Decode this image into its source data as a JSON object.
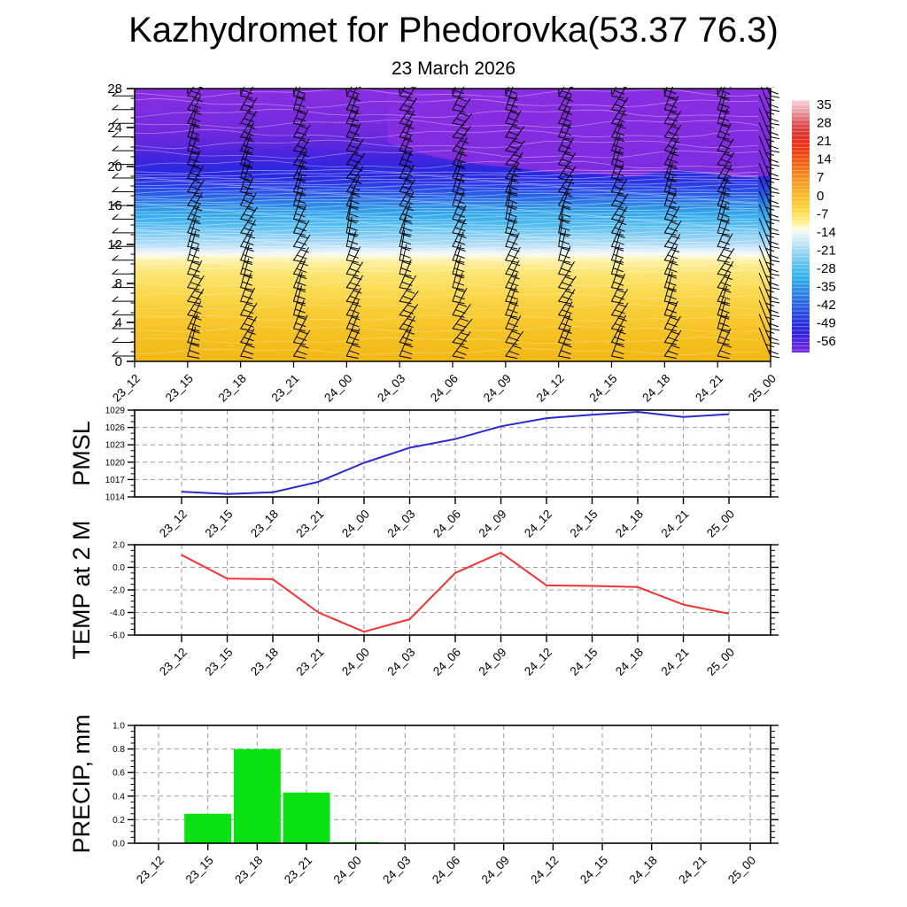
{
  "title": "Kazhydromet for Phedorovka(53.37 76.3)",
  "subtitle": "23 March 2026",
  "time_labels": [
    "23_12",
    "23_15",
    "23_18",
    "23_21",
    "24_00",
    "24_03",
    "24_06",
    "24_09",
    "24_12",
    "24_15",
    "24_18",
    "24_21",
    "25_00"
  ],
  "colorbar": {
    "tick_labels": [
      "35",
      "28",
      "21",
      "14",
      "7",
      "0",
      "-7",
      "-14",
      "-21",
      "-28",
      "-35",
      "-42",
      "-49",
      "-56"
    ],
    "gradient": [
      {
        "v": 37,
        "c": "#f6ced6"
      },
      {
        "v": 33,
        "c": "#ea9aa1"
      },
      {
        "v": 29,
        "c": "#dd5a5e"
      },
      {
        "v": 26,
        "c": "#d63c3c"
      },
      {
        "v": 22,
        "c": "#e82d20"
      },
      {
        "v": 18,
        "c": "#f03b12"
      },
      {
        "v": 14,
        "c": "#f25c14"
      },
      {
        "v": 10,
        "c": "#f57d1a"
      },
      {
        "v": 7,
        "c": "#f79620"
      },
      {
        "v": 3,
        "c": "#f9ab24"
      },
      {
        "v": 0,
        "c": "#fbbd28"
      },
      {
        "v": -4,
        "c": "#fcd23a"
      },
      {
        "v": -7,
        "c": "#fde35f"
      },
      {
        "v": -10,
        "c": "#fdf09a"
      },
      {
        "v": -12,
        "c": "#fefce0"
      },
      {
        "v": -14,
        "c": "#eaf5fb"
      },
      {
        "v": -17,
        "c": "#c9e7f8"
      },
      {
        "v": -21,
        "c": "#99d4f4"
      },
      {
        "v": -25,
        "c": "#64c3f1"
      },
      {
        "v": -28,
        "c": "#46baef"
      },
      {
        "v": -32,
        "c": "#30a8ea"
      },
      {
        "v": -35,
        "c": "#2b92e6"
      },
      {
        "v": -39,
        "c": "#2b74e3"
      },
      {
        "v": -42,
        "c": "#2b5de2"
      },
      {
        "v": -46,
        "c": "#2b3fe0"
      },
      {
        "v": -49,
        "c": "#2a2dde"
      },
      {
        "v": -52,
        "c": "#3622dd"
      },
      {
        "v": -56,
        "c": "#5625dc"
      },
      {
        "v": -58,
        "c": "#6b28dd"
      },
      {
        "v": -60,
        "c": "#7c2cdf"
      }
    ]
  },
  "chart_data": [
    {
      "type": "heatmap",
      "name": "wind-temperature-height-cross-section",
      "categories": [
        "23_12",
        "23_15",
        "23_18",
        "23_21",
        "24_00",
        "24_03",
        "24_06",
        "24_09",
        "24_12",
        "24_15",
        "24_18",
        "24_21",
        "25_00"
      ],
      "ylim": [
        0,
        28
      ],
      "yticks": [
        "0",
        "4",
        "8",
        "12",
        "16",
        "20",
        "24",
        "28"
      ],
      "colorbar_labels": [
        35,
        28,
        21,
        14,
        7,
        0,
        -7,
        -14,
        -21,
        -28,
        -35,
        -42,
        -49,
        -56
      ],
      "overlay": "wind-barbs",
      "gradient_by_height": [
        {
          "h": 28,
          "c": "#8a2ee2"
        },
        {
          "h": 26,
          "c": "#7f2ce0"
        },
        {
          "h": 24,
          "c": "#752ade"
        },
        {
          "h": 22.5,
          "c": "#6227dd"
        },
        {
          "h": 21,
          "c": "#4524de"
        },
        {
          "h": 19.8,
          "c": "#2f27e0"
        },
        {
          "h": 19,
          "c": "#2828e2"
        },
        {
          "h": 18.2,
          "c": "#2c3be6"
        },
        {
          "h": 17.4,
          "c": "#2853e8"
        },
        {
          "h": 16.6,
          "c": "#2a72e6"
        },
        {
          "h": 15.8,
          "c": "#2f93e6"
        },
        {
          "h": 15,
          "c": "#36abec"
        },
        {
          "h": 14,
          "c": "#52bcf0"
        },
        {
          "h": 13,
          "c": "#84cdf3"
        },
        {
          "h": 12,
          "c": "#b4ddf6"
        },
        {
          "h": 11.4,
          "c": "#dceefa"
        },
        {
          "h": 11.05,
          "c": "#f2f7f6"
        },
        {
          "h": 10.8,
          "c": "#fdf9d8"
        },
        {
          "h": 10.3,
          "c": "#fdf0a4"
        },
        {
          "h": 9.5,
          "c": "#fce87e"
        },
        {
          "h": 8,
          "c": "#fbdf5f"
        },
        {
          "h": 6,
          "c": "#f9d23f"
        },
        {
          "h": 4,
          "c": "#f7c72c"
        },
        {
          "h": 2,
          "c": "#f4bf1d"
        },
        {
          "h": 0,
          "c": "#f2b714"
        }
      ],
      "purple_boundary": [
        [
          285,
          22.5
        ],
        [
          340,
          21.2
        ],
        [
          400,
          19.9
        ],
        [
          460,
          19.35
        ],
        [
          520,
          19.5
        ],
        [
          560,
          19.0
        ],
        [
          620,
          19.4
        ],
        [
          680,
          19.05
        ],
        [
          718,
          19.3
        ]
      ],
      "contour_stripe_bands": [
        {
          "from": 1.0,
          "to": 9.0,
          "step": 1.15,
          "opacity": 0.3,
          "amp": 2.5
        },
        {
          "from": 9.4,
          "to": 10.9,
          "step": 0.5,
          "opacity": 0.45,
          "amp": 2.0
        },
        {
          "from": 11.1,
          "to": 19.6,
          "step": 0.3,
          "opacity": 0.5,
          "amp": 1.5
        },
        {
          "from": 20.2,
          "to": 27.6,
          "step": 1.05,
          "opacity": 0.4,
          "amp": 3.5
        }
      ],
      "wind_barbs": {
        "columns": 13,
        "levels": 20,
        "h0": 0.55,
        "dh": 1.405,
        "staff": 34,
        "base_angle": 66,
        "wobble": 9,
        "left_column_angle": 180,
        "right_column_angle": 112
      }
    },
    {
      "type": "line",
      "name": "PMSL",
      "categories": [
        "23_12",
        "23_15",
        "23_18",
        "23_21",
        "24_00",
        "24_03",
        "24_06",
        "24_09",
        "24_12",
        "24_15",
        "24_18",
        "24_21",
        "25_00"
      ],
      "values": [
        1014.9,
        1014.5,
        1014.8,
        1016.6,
        1019.9,
        1022.5,
        1024.0,
        1026.2,
        1027.6,
        1028.2,
        1028.7,
        1027.8,
        1028.3
      ],
      "ylim": [
        1014,
        1029
      ],
      "yticks": [
        "1014",
        "1017",
        "1020",
        "1023",
        "1026",
        "1029"
      ],
      "color": "#2929d0"
    },
    {
      "type": "line",
      "name": "TEMP at 2 M",
      "categories": [
        "23_12",
        "23_15",
        "23_18",
        "23_21",
        "24_00",
        "24_03",
        "24_06",
        "24_09",
        "24_12",
        "24_15",
        "24_18",
        "24_21",
        "25_00"
      ],
      "values": [
        1.1,
        -1.0,
        -1.05,
        -4.0,
        -5.7,
        -4.6,
        -0.5,
        1.3,
        -1.6,
        -1.65,
        -1.75,
        -3.3,
        -4.1
      ],
      "ylim": [
        -6,
        2
      ],
      "yticks": [
        "2.0",
        "0.0",
        "-2.0",
        "-4.0",
        "-6.0"
      ],
      "color": "#f13232"
    },
    {
      "type": "bar",
      "name": "PRECIP, mm",
      "categories": [
        "23_12",
        "23_15",
        "23_18",
        "23_21",
        "24_00",
        "24_03",
        "24_06",
        "24_09",
        "24_12",
        "24_15",
        "24_18",
        "24_21",
        "25_00"
      ],
      "values": [
        0,
        0.25,
        0.8,
        0.43,
        0.01,
        0,
        0,
        0,
        0,
        0,
        0,
        0,
        0
      ],
      "ylim": [
        0,
        1
      ],
      "yticks": [
        "0.0",
        "0.2",
        "0.4",
        "0.6",
        "0.8",
        "1.0"
      ],
      "color": "#09e112"
    }
  ]
}
